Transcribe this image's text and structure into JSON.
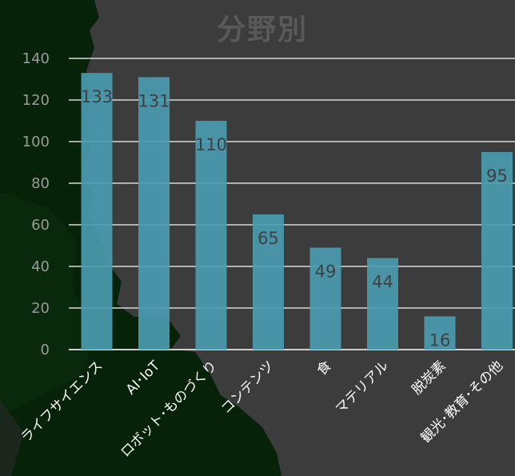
{
  "chart_data": {
    "type": "bar",
    "title": "分野別",
    "categories": [
      "ライフサイエンス",
      "AI･IoT",
      "ロボット･ものづくり",
      "コンテンツ",
      "食",
      "マテリアル",
      "脱炭素",
      "観光･教育･その他"
    ],
    "values": [
      133,
      131,
      110,
      65,
      49,
      44,
      16,
      95
    ],
    "yticks": [
      "0",
      "20",
      "40",
      "60",
      "80",
      "100",
      "120",
      "140"
    ],
    "ylim": [
      0,
      140
    ],
    "grid": true,
    "colors": {
      "bar": "#4a9bb0",
      "background": "#3c3c3c",
      "grid": "#d9d9d9",
      "tick_label": "#9a9a9a",
      "data_label": "#404040",
      "category_label": "#ffffff",
      "title": "#595959",
      "foliage": "#062208"
    }
  }
}
